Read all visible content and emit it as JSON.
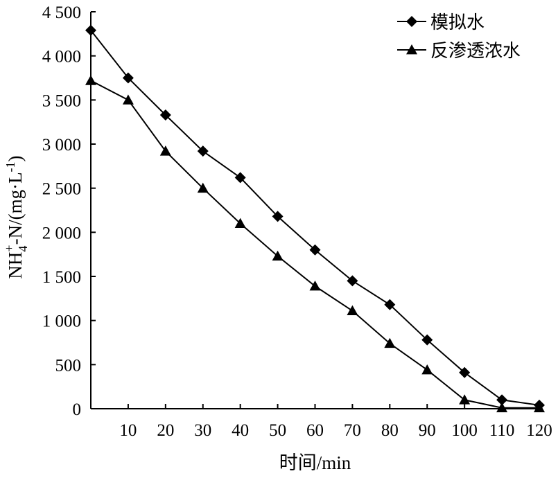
{
  "chart_data": {
    "type": "line",
    "title": "",
    "xlabel": "时间/min",
    "ylabel": {
      "main": "NH",
      "sub": "4",
      "sup": "+",
      "rest": "-N/(mg·L",
      "sup2": "-1",
      "close": ")"
    },
    "xlim": [
      0,
      120
    ],
    "ylim": [
      0,
      4500
    ],
    "x_ticks": [
      10,
      20,
      30,
      40,
      50,
      60,
      70,
      80,
      90,
      100,
      110,
      120
    ],
    "y_ticks": [
      {
        "value": 0,
        "label": "0"
      },
      {
        "value": 500,
        "label": "500"
      },
      {
        "value": 1000,
        "label": "1 000"
      },
      {
        "value": 1500,
        "label": "1 500"
      },
      {
        "value": 2000,
        "label": "2 000"
      },
      {
        "value": 2500,
        "label": "2 500"
      },
      {
        "value": 3000,
        "label": "3 000"
      },
      {
        "value": 3500,
        "label": "3 500"
      },
      {
        "value": 4000,
        "label": "4 000"
      },
      {
        "value": 4500,
        "label": "4 500"
      }
    ],
    "x": [
      0,
      10,
      20,
      30,
      40,
      50,
      60,
      70,
      80,
      90,
      100,
      110,
      120
    ],
    "series": [
      {
        "name": "模拟水",
        "marker": "diamond",
        "values": [
          4290,
          3750,
          3330,
          2920,
          2620,
          2180,
          1800,
          1450,
          1180,
          780,
          410,
          100,
          40
        ]
      },
      {
        "name": "反渗透浓水",
        "marker": "triangle",
        "values": [
          3720,
          3500,
          2920,
          2500,
          2100,
          1730,
          1390,
          1110,
          740,
          440,
          100,
          10,
          10
        ]
      }
    ],
    "legend_position": "top-right",
    "grid": false
  }
}
